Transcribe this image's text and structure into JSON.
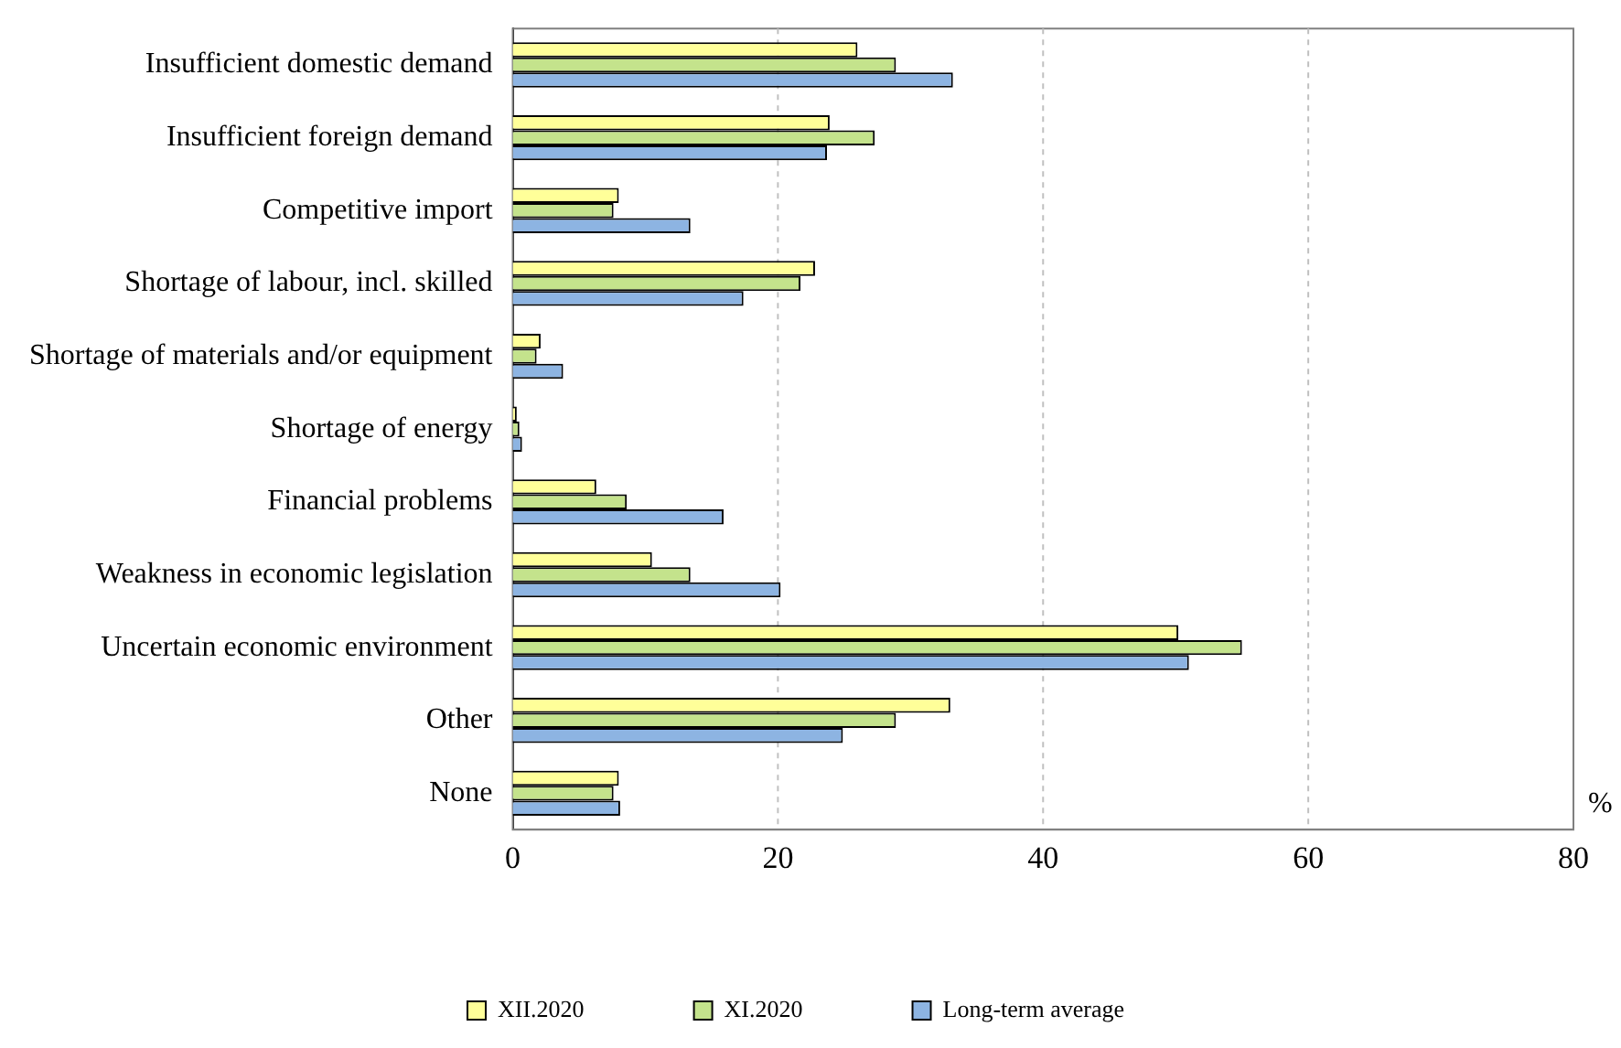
{
  "chart_data": {
    "type": "bar",
    "orientation": "horizontal",
    "xlabel": "%",
    "categories": [
      "Insufficient domestic demand",
      "Insufficient foreign demand",
      "Competitive import",
      "Shortage of labour, incl. skilled",
      "Shortage of materials and/or equipment",
      "Shortage of energy",
      "Financial problems",
      "Weakness in economic legislation",
      "Uncertain economic environment",
      "Other",
      "None"
    ],
    "series": [
      {
        "name": "XII.2020",
        "color": "#ffff99",
        "values": [
          26.0,
          23.9,
          8.0,
          22.8,
          2.1,
          0.3,
          6.3,
          10.5,
          50.2,
          33.0,
          8.0
        ]
      },
      {
        "name": "XI.2020",
        "color": "#c4e38c",
        "values": [
          28.9,
          27.3,
          7.6,
          21.7,
          1.8,
          0.5,
          8.6,
          13.4,
          55.0,
          28.9,
          7.6
        ]
      },
      {
        "name": "Long-term average",
        "color": "#8db4e2",
        "values": [
          33.2,
          23.7,
          13.4,
          17.4,
          3.8,
          0.7,
          15.9,
          20.2,
          51.0,
          24.9,
          8.1
        ]
      }
    ],
    "xlim": [
      0,
      80
    ],
    "xticks": [
      0,
      20,
      40,
      60,
      80
    ],
    "grid": "x",
    "legend": "bottom"
  }
}
